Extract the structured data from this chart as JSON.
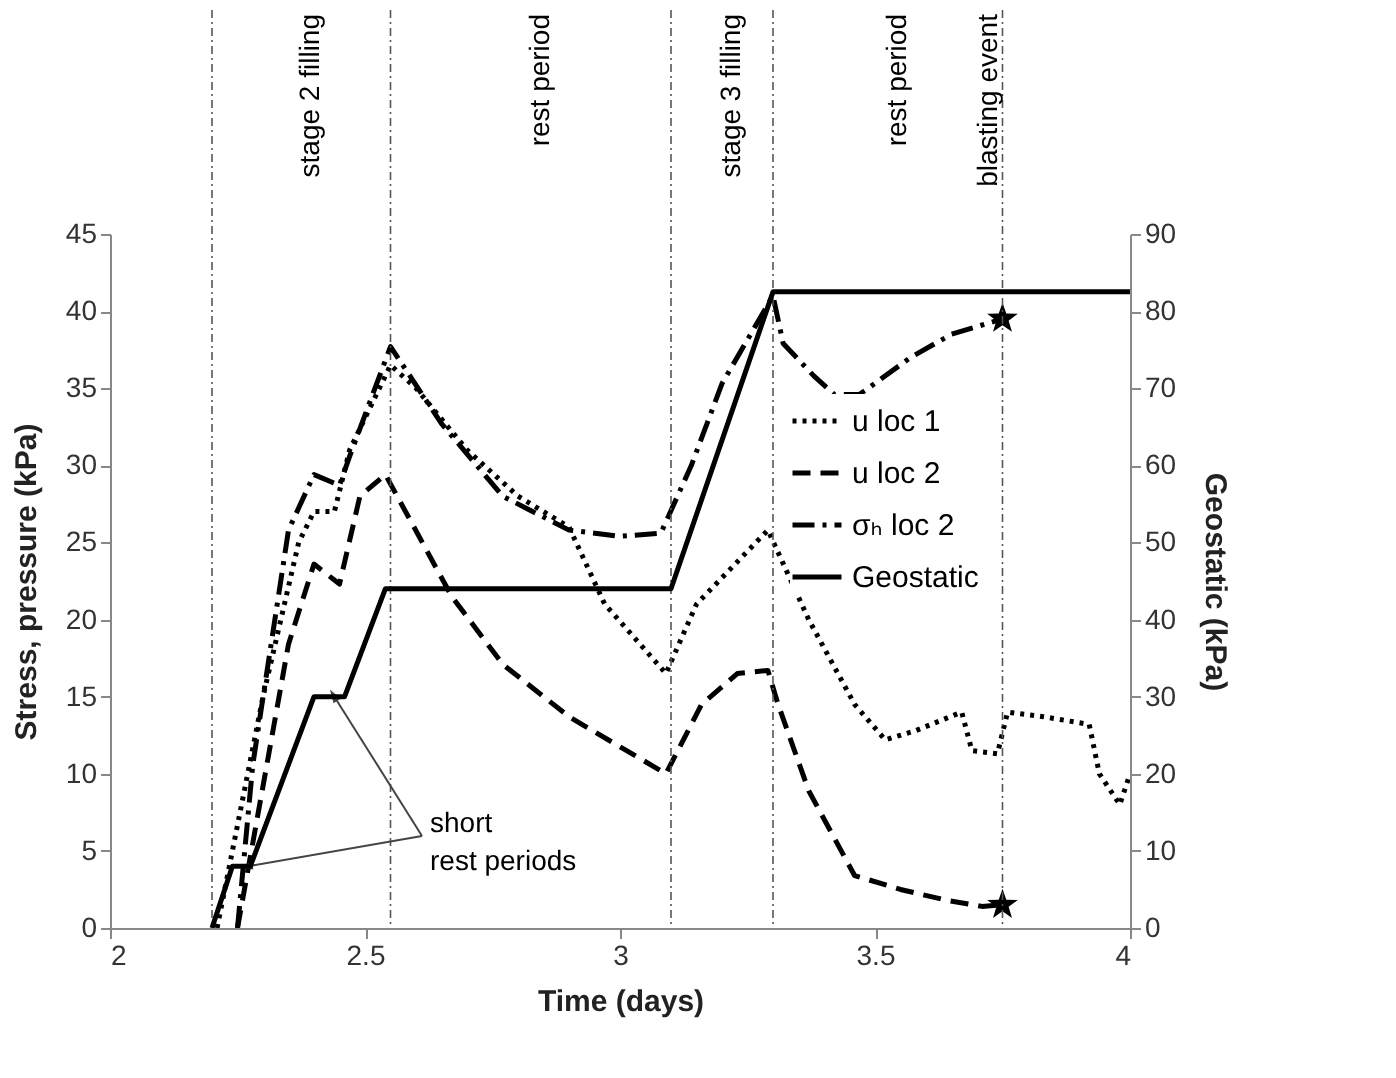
{
  "chart_data": {
    "type": "line",
    "xlabel": "Time (days)",
    "ylabel": "Stress, pressure (kPa)",
    "y2label": "Geostatic (kPa)",
    "xlim": [
      2,
      4
    ],
    "xticks": [
      2,
      2.5,
      3,
      3.5,
      4
    ],
    "ylim": [
      0,
      45
    ],
    "yticks": [
      0,
      5,
      10,
      15,
      20,
      25,
      30,
      35,
      40,
      45
    ],
    "y2lim": [
      0,
      90
    ],
    "y2ticks": [
      0,
      10,
      20,
      30,
      40,
      50,
      60,
      70,
      80,
      90
    ],
    "grid": false,
    "legend": "right",
    "series": [
      {
        "name": "u loc 1",
        "color": "#000000",
        "line_style": "dotted",
        "x": [
          2.21,
          2.3,
          2.37,
          2.4,
          2.44,
          2.47,
          2.55,
          2.6,
          2.7,
          2.8,
          2.9,
          2.97,
          3.09,
          3.15,
          3.29,
          3.37,
          3.46,
          3.52,
          3.58,
          3.67,
          3.69,
          3.74,
          3.76,
          3.83,
          3.92,
          3.94,
          3.98,
          4.0
        ],
        "values": [
          0,
          15,
          25,
          27,
          27,
          31,
          36.5,
          35,
          31,
          28,
          26,
          21,
          16.5,
          21,
          25.8,
          20,
          14.5,
          12.2,
          12.8,
          14,
          11.5,
          11.3,
          14,
          13.7,
          13.2,
          10,
          8,
          10
        ]
      },
      {
        "name": "u loc 2",
        "color": "#000000",
        "line_style": "dashed",
        "x": [
          2.25,
          2.35,
          2.4,
          2.45,
          2.49,
          2.54,
          2.67,
          2.77,
          2.9,
          3.09,
          3.16,
          3.23,
          3.29,
          3.31,
          3.37,
          3.46,
          3.55,
          3.64,
          3.71,
          3.75
        ],
        "values": [
          0,
          18.4,
          23.6,
          22.3,
          28,
          29.4,
          21.5,
          17.1,
          13.7,
          10,
          14.5,
          16.5,
          16.7,
          14.5,
          8.9,
          3.4,
          2.5,
          1.8,
          1.4,
          1.5
        ]
      },
      {
        "name": "σₕ loc 2",
        "color": "#000000",
        "line_style": "dashdot",
        "x": [
          2.25,
          2.28,
          2.35,
          2.4,
          2.45,
          2.47,
          2.55,
          2.65,
          2.77,
          2.9,
          3.0,
          3.08,
          3.14,
          3.2,
          3.3,
          3.32,
          3.38,
          3.42,
          3.47,
          3.57,
          3.65,
          3.75
        ],
        "values": [
          0,
          10.6,
          25.8,
          29.4,
          28.7,
          30.6,
          37.7,
          32.7,
          28,
          25.8,
          25.4,
          25.6,
          30,
          35.3,
          41,
          37.9,
          35.8,
          34.6,
          34.6,
          37,
          38.5,
          39.5
        ]
      },
      {
        "name": "Geostatic",
        "color": "#000000",
        "line_style": "solid",
        "axis": "y2",
        "x": [
          2.2,
          2.24,
          2.275,
          2.4,
          2.46,
          2.54,
          3.1,
          3.3,
          4.0
        ],
        "values": [
          0,
          8,
          8,
          30,
          30,
          44,
          44,
          82.5,
          82.5
        ]
      },
      {
        "type": "scatter",
        "marker": "star",
        "color": "#000000",
        "x": [
          3.75,
          3.75
        ],
        "values": [
          39.5,
          1.5
        ]
      }
    ],
    "ref_lines": [
      {
        "axis": "x",
        "value": 2.2
      },
      {
        "axis": "x",
        "value": 2.55
      },
      {
        "axis": "x",
        "value": 3.1
      },
      {
        "axis": "x",
        "value": 3.3
      },
      {
        "axis": "x",
        "value": 3.75,
        "label": "blasting event"
      }
    ],
    "annotations": [
      "stage 2 filling",
      "rest period",
      "stage 3 filling",
      "rest period",
      {
        "text": "short",
        "x": 2.44,
        "y": 15
      },
      {
        "text": "rest periods",
        "x": 2.27,
        "y": 4
      }
    ]
  }
}
